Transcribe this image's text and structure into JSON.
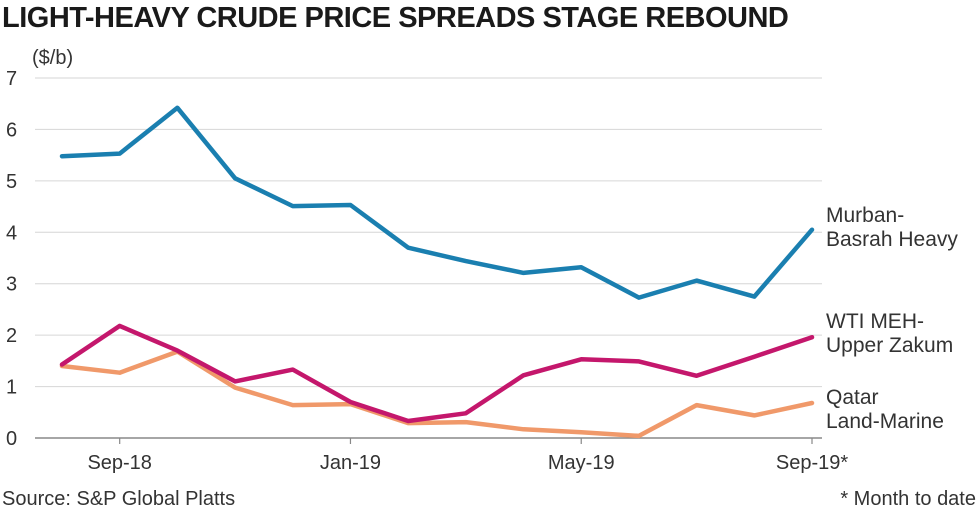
{
  "title": "LIGHT-HEAVY CRUDE PRICE SPREADS STAGE REBOUND",
  "source": "Source: S&P Global Platts",
  "footnote": "* Month to date",
  "chart_data": {
    "type": "line",
    "ylabel": "($/b)",
    "ylim": [
      0,
      7
    ],
    "yticks": [
      0,
      1,
      2,
      3,
      4,
      5,
      6,
      7
    ],
    "categories": [
      "Aug-18",
      "Sep-18",
      "Oct-18",
      "Nov-18",
      "Dec-18",
      "Jan-19",
      "Feb-19",
      "Mar-19",
      "Apr-19",
      "May-19",
      "Jun-19",
      "Jul-19",
      "Aug-19",
      "Sep-19*"
    ],
    "xtick_labels": [
      {
        "index": 1,
        "label": "Sep-18"
      },
      {
        "index": 5,
        "label": "Jan-19"
      },
      {
        "index": 9,
        "label": "May-19"
      },
      {
        "index": 13,
        "label": "Sep-19*"
      }
    ],
    "grid": true,
    "series": [
      {
        "name": "Murban-Basrah Heavy",
        "label_lines": [
          "Murban-",
          "Basrah Heavy"
        ],
        "color": "#1a7fb0",
        "values": [
          5.48,
          5.53,
          6.42,
          5.05,
          4.51,
          4.53,
          3.7,
          3.44,
          3.21,
          3.32,
          2.73,
          3.06,
          2.75,
          4.05
        ]
      },
      {
        "name": "WTI MEH-Upper Zakum",
        "label_lines": [
          "WTI MEH-",
          "Upper Zakum"
        ],
        "color": "#c4176c",
        "values": [
          1.43,
          2.18,
          1.7,
          1.1,
          1.33,
          0.7,
          0.33,
          0.48,
          1.22,
          1.53,
          1.49,
          1.21,
          1.58,
          1.96
        ]
      },
      {
        "name": "Qatar Land-Marine",
        "label_lines": [
          "Qatar",
          "Land-Marine"
        ],
        "color": "#f0996a",
        "values": [
          1.4,
          1.27,
          1.68,
          0.98,
          0.64,
          0.66,
          0.29,
          0.31,
          0.17,
          0.11,
          0.04,
          0.64,
          0.44,
          0.68
        ]
      }
    ]
  }
}
